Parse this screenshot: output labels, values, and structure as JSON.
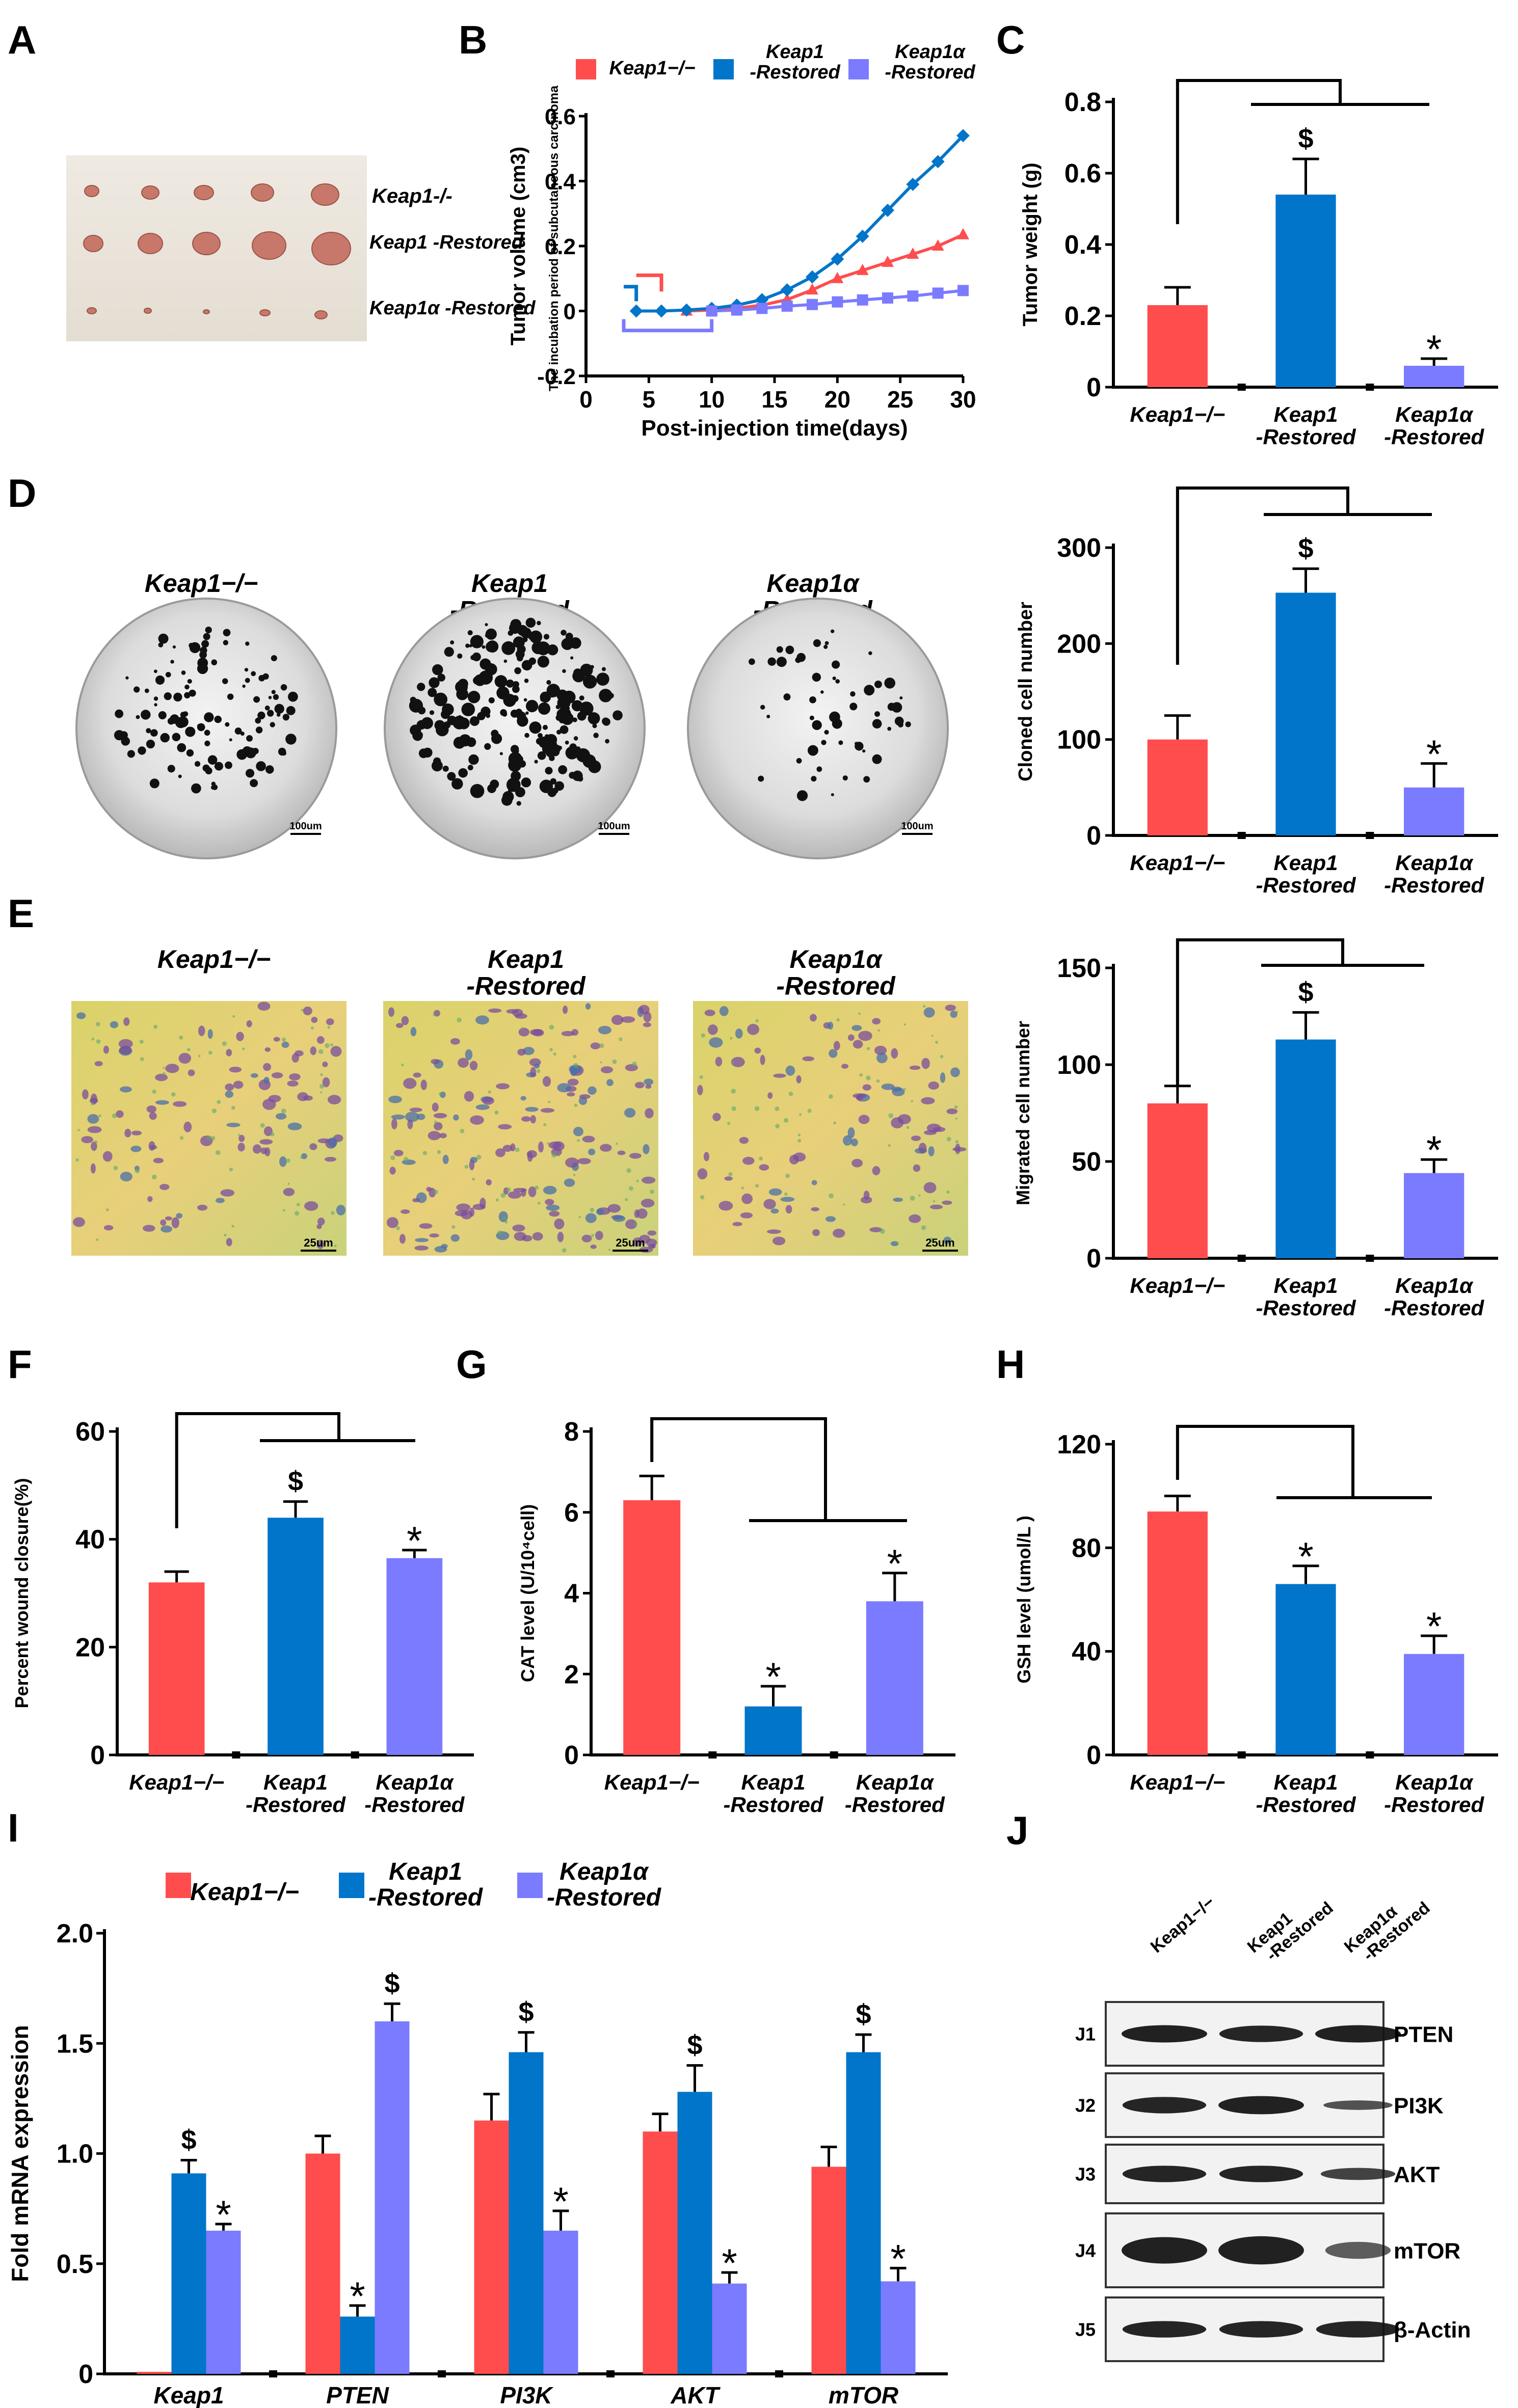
{
  "colors": {
    "red": "#ff4d4d",
    "blue": "#0075c9",
    "purple": "#7b7bff",
    "axis": "#000000"
  },
  "groups": [
    "Keap1−/−",
    "Keap1 -Restored",
    "Keap1α -Restored"
  ],
  "panels": {
    "A": {
      "letter": "A",
      "labels": [
        "Keap1-/-",
        "Keap1 -Restored",
        "Keap1α -Restored"
      ]
    },
    "D": {
      "letter": "D",
      "scale_bar": "100um"
    },
    "E": {
      "letter": "E",
      "scale_bar": "25um"
    },
    "J": {
      "letter": "J",
      "columns": [
        "Keap1−/−",
        "Keap1 -Restored",
        "Keap1α -Restored"
      ],
      "rows": [
        {
          "id": "J1",
          "protein": "PTEN"
        },
        {
          "id": "J2",
          "protein": "PI3K"
        },
        {
          "id": "J3",
          "protein": "AKT"
        },
        {
          "id": "J4",
          "protein": "mTOR"
        },
        {
          "id": "J5",
          "protein": "β-Actin"
        }
      ]
    }
  },
  "chart_data": [
    {
      "panel": "B",
      "type": "line",
      "xlabel": "Post-injection time(days)",
      "ylabel": "Tumor volume (cm3)",
      "xlim": [
        0,
        30
      ],
      "ylim": [
        -0.2,
        0.6
      ],
      "xticks": [
        0,
        5,
        10,
        15,
        20,
        25,
        30
      ],
      "yticks": [
        -0.2,
        0,
        0.2,
        0.4,
        0.6
      ],
      "annotation": "The incubation period of subcutaneous carcinoma",
      "legend": [
        "Keap1−/−",
        "Keap1 -Restored",
        "Keap1α -Restored"
      ],
      "series": [
        {
          "name": "Keap1−/−",
          "color": "#ff4d4d",
          "x": [
            8,
            10,
            12,
            14,
            16,
            18,
            20,
            22,
            24,
            26,
            28,
            30
          ],
          "y": [
            0,
            0.003,
            0.008,
            0.018,
            0.035,
            0.065,
            0.1,
            0.125,
            0.15,
            0.175,
            0.2,
            0.235
          ]
        },
        {
          "name": "Keap1 -Restored",
          "color": "#0075c9",
          "x": [
            4,
            6,
            8,
            10,
            12,
            14,
            16,
            18,
            20,
            22,
            24,
            26,
            28,
            30
          ],
          "y": [
            0,
            0,
            0.003,
            0.008,
            0.018,
            0.035,
            0.065,
            0.105,
            0.16,
            0.23,
            0.31,
            0.39,
            0.46,
            0.54
          ]
        },
        {
          "name": "Keap1α -Restored",
          "color": "#7b7bff",
          "x": [
            10,
            12,
            14,
            16,
            18,
            20,
            22,
            24,
            26,
            28,
            30
          ],
          "y": [
            0,
            0.003,
            0.008,
            0.015,
            0.02,
            0.028,
            0.034,
            0.04,
            0.046,
            0.055,
            0.063
          ]
        }
      ]
    },
    {
      "panel": "C",
      "type": "bar",
      "ylabel": "Tumor weight (g)",
      "ylim": [
        0,
        0.8
      ],
      "yticks": [
        0,
        0.2,
        0.4,
        0.6,
        0.8
      ],
      "tick_labels": [
        "0",
        "0.2",
        "0.4",
        "0.6",
        "0.8"
      ],
      "categories": [
        "Keap1−/−",
        "Keap1 -Restored",
        "Keap1α -Restored"
      ],
      "values": [
        0.23,
        0.54,
        0.06
      ],
      "errors": [
        0.05,
        0.1,
        0.02
      ],
      "marks": [
        "",
        "$",
        "*"
      ]
    },
    {
      "panel": "D",
      "type": "bar",
      "ylabel": "Cloned cell number",
      "ylim": [
        0,
        300
      ],
      "yticks": [
        0,
        100,
        200,
        300
      ],
      "tick_labels": [
        "0",
        "100",
        "200",
        "300"
      ],
      "categories": [
        "Keap1−/−",
        "Keap1 -Restored",
        "Keap1α -Restored"
      ],
      "values": [
        100,
        253,
        50
      ],
      "errors": [
        25,
        25,
        25
      ],
      "marks": [
        "",
        "$",
        "*"
      ]
    },
    {
      "panel": "E",
      "type": "bar",
      "ylabel": "Migrated cell number",
      "ylim": [
        0,
        150
      ],
      "yticks": [
        0,
        50,
        100,
        150
      ],
      "tick_labels": [
        "0",
        "50",
        "100",
        "150"
      ],
      "categories": [
        "Keap1−/−",
        "Keap1 -Restored",
        "Keap1α -Restored"
      ],
      "values": [
        80,
        113,
        44
      ],
      "errors": [
        9,
        14,
        7
      ],
      "marks": [
        "",
        "$",
        "*"
      ]
    },
    {
      "panel": "F",
      "type": "bar",
      "ylabel": "Percent wound closure(%)",
      "ylim": [
        0,
        60
      ],
      "yticks": [
        0,
        20,
        40,
        60
      ],
      "tick_labels": [
        "0",
        "20",
        "40",
        "60"
      ],
      "categories": [
        "Keap1−/−",
        "Keap1 -Restored",
        "Keap1α -Restored"
      ],
      "values": [
        32,
        44,
        36.5
      ],
      "errors": [
        2,
        3,
        1.5
      ],
      "marks": [
        "",
        "$",
        "*"
      ]
    },
    {
      "panel": "G",
      "type": "bar",
      "ylabel": "CAT level (U/10⁴cell)",
      "ylim": [
        0,
        8
      ],
      "yticks": [
        0,
        2,
        4,
        6,
        8
      ],
      "tick_labels": [
        "0",
        "2",
        "4",
        "6",
        "8"
      ],
      "categories": [
        "Keap1−/−",
        "Keap1 -Restored",
        "Keap1α -Restored"
      ],
      "values": [
        6.3,
        1.2,
        3.8
      ],
      "errors": [
        0.6,
        0.5,
        0.7
      ],
      "marks": [
        "",
        "*",
        "*"
      ]
    },
    {
      "panel": "H",
      "type": "bar",
      "ylabel": "GSH  level (umol/L )",
      "ylim": [
        0,
        120
      ],
      "yticks": [
        0,
        40,
        80,
        120
      ],
      "tick_labels": [
        "0",
        "40",
        "80",
        "120"
      ],
      "categories": [
        "Keap1−/−",
        "Keap1 -Restored",
        "Keap1α -Restored"
      ],
      "values": [
        94,
        66,
        39
      ],
      "errors": [
        6,
        7,
        7
      ],
      "marks": [
        "",
        "*",
        "*"
      ]
    },
    {
      "panel": "I",
      "type": "bar",
      "ylabel": "Fold mRNA expression",
      "ylim": [
        0,
        2.0
      ],
      "yticks": [
        0,
        0.5,
        1.0,
        1.5,
        2.0
      ],
      "tick_labels": [
        "0",
        "0.5",
        "1.0",
        "1.5",
        "2.0"
      ],
      "categories": [
        "Keap1",
        "PTEN",
        "PI3K",
        "AKT",
        "mTOR"
      ],
      "legend": [
        "Keap1−/−",
        "Keap1 -Restored",
        "Keap1α -Restored"
      ],
      "series": [
        {
          "name": "Keap1−/−",
          "color": "#ff4d4d",
          "values": [
            0,
            1.0,
            1.15,
            1.1,
            0.94
          ],
          "errors": [
            0,
            0.08,
            0.12,
            0.08,
            0.09
          ],
          "marks": [
            "",
            "",
            "",
            "",
            ""
          ]
        },
        {
          "name": "Keap1 -Restored",
          "color": "#0075c9",
          "values": [
            0.91,
            0.26,
            1.46,
            1.28,
            1.46
          ],
          "errors": [
            0.06,
            0.05,
            0.09,
            0.12,
            0.08
          ],
          "marks": [
            "$",
            "*",
            "$",
            "$",
            "$"
          ]
        },
        {
          "name": "Keap1α -Restored",
          "color": "#7b7bff",
          "values": [
            0.65,
            1.6,
            0.65,
            0.41,
            0.42
          ],
          "errors": [
            0.03,
            0.08,
            0.09,
            0.05,
            0.06
          ],
          "marks": [
            "*",
            "$",
            "*",
            "*",
            "*"
          ]
        }
      ]
    }
  ]
}
